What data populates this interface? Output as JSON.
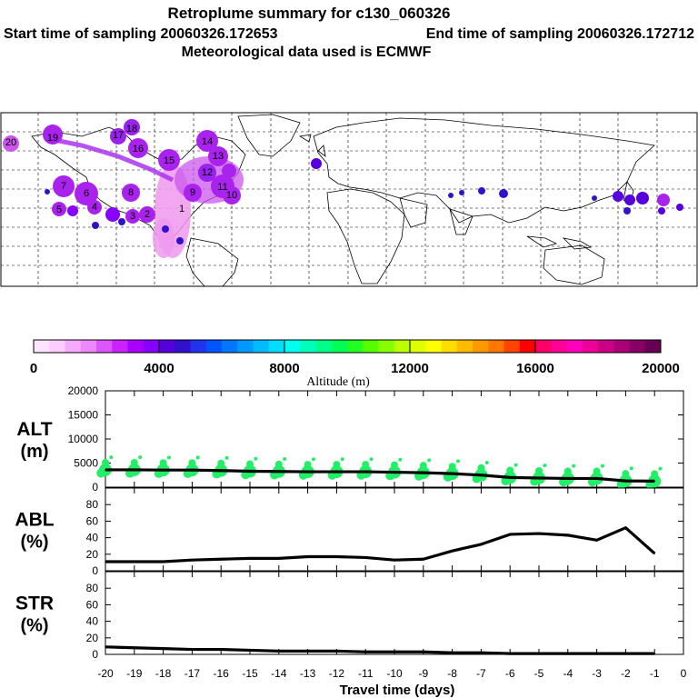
{
  "header": {
    "title": "Retroplume summary for c130_060326",
    "start_label": "Start time of sampling 20060326.172653",
    "end_label": "End time of sampling 20060326.172712",
    "met_label": "Meteorological data used is ECMWF"
  },
  "map": {
    "trajectory_labels": [
      "20",
      "19",
      "18",
      "17",
      "16",
      "15",
      "14",
      "13",
      "12",
      "11",
      "10",
      "9",
      "8",
      "7",
      "6",
      "5",
      "4",
      "3",
      "2",
      "1"
    ]
  },
  "colorbar": {
    "title": "Altitude (m)",
    "ticks": [
      "0",
      "4000",
      "8000",
      "12000",
      "16000",
      "20000"
    ],
    "colors": [
      "#ffe4ff",
      "#ffccff",
      "#f6aaff",
      "#ee88ff",
      "#dd55ff",
      "#cc22ff",
      "#aa00ff",
      "#8800ff",
      "#5500dd",
      "#3311cc",
      "#2233ee",
      "#0055ff",
      "#0077ff",
      "#0099ff",
      "#00bbff",
      "#00ddff",
      "#00ffee",
      "#00ffbb",
      "#00ff88",
      "#00ff55",
      "#22ff22",
      "#55ff00",
      "#88ff00",
      "#bbff00",
      "#ddff00",
      "#ffff00",
      "#ffdd00",
      "#ffbb00",
      "#ff9900",
      "#ff7700",
      "#ff4400",
      "#ff0000",
      "#ff0066",
      "#ff0099",
      "#ff00bb",
      "#ee0099",
      "#cc0088",
      "#aa0077",
      "#880066",
      "#660055"
    ]
  },
  "chart_data": [
    {
      "type": "line",
      "id": "alt",
      "label_line1": "ALT",
      "label_line2": "(m)",
      "ylim": [
        0,
        20000
      ],
      "y_ticks": [
        "20000",
        "15000",
        "10000",
        "5000",
        "0"
      ],
      "x": [
        -20,
        -19,
        -18,
        -17,
        -16,
        -15,
        -14,
        -13,
        -12,
        -11,
        -10,
        -9,
        -8,
        -7,
        -6,
        -5,
        -4,
        -3,
        -2,
        -1
      ],
      "values": [
        3600,
        3600,
        3550,
        3550,
        3450,
        3300,
        3250,
        3200,
        3200,
        3200,
        3100,
        3000,
        2800,
        2500,
        2000,
        1900,
        1800,
        1800,
        1300,
        1250
      ],
      "scatter_color": "#22ee66"
    },
    {
      "type": "line",
      "id": "abl",
      "label_line1": "ABL",
      "label_line2": "(%)",
      "ylim": [
        0,
        100
      ],
      "y_ticks": [
        "80",
        "60",
        "40",
        "20",
        "0"
      ],
      "x": [
        -20,
        -19,
        -18,
        -17,
        -16,
        -15,
        -14,
        -13,
        -12,
        -11,
        -10,
        -9,
        -8,
        -7,
        -6,
        -5,
        -4,
        -3,
        -2,
        -1
      ],
      "values": [
        11,
        11,
        11,
        13,
        14,
        15,
        15,
        17,
        17,
        16,
        13,
        14,
        24,
        32,
        44,
        45,
        43,
        37,
        52,
        21
      ]
    },
    {
      "type": "line",
      "id": "str",
      "label_line1": "STR",
      "label_line2": "(%)",
      "ylim": [
        0,
        100
      ],
      "y_ticks": [
        "80",
        "60",
        "40",
        "20",
        "0"
      ],
      "x": [
        -20,
        -19,
        -18,
        -17,
        -16,
        -15,
        -14,
        -13,
        -12,
        -11,
        -10,
        -9,
        -8,
        -7,
        -6,
        -5,
        -4,
        -3,
        -2,
        -1
      ],
      "values": [
        9,
        8,
        7,
        6,
        6,
        5,
        4,
        4,
        4,
        3,
        3,
        3,
        2,
        2,
        1,
        1,
        1,
        1,
        1,
        1
      ]
    }
  ],
  "xaxis": {
    "ticks": [
      "-20",
      "-19",
      "-18",
      "-17",
      "-16",
      "-15",
      "-14",
      "-13",
      "-12",
      "-11",
      "-10",
      "-9",
      "-8",
      "-7",
      "-6",
      "-5",
      "-4",
      "-3",
      "-2",
      "-1",
      "0"
    ],
    "title": "Travel time (days)"
  }
}
